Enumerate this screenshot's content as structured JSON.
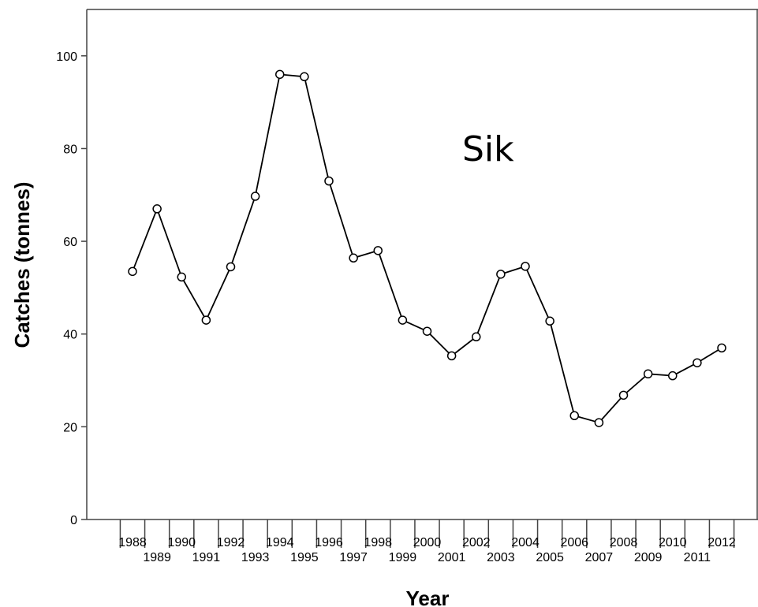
{
  "chart_data": {
    "type": "line",
    "title": "",
    "annotation": "Sik",
    "xlabel": "Year",
    "ylabel": "Catches (tonnes)",
    "ylim": [
      0,
      110
    ],
    "yticks": [
      0,
      20,
      40,
      60,
      80,
      100
    ],
    "grid": false,
    "legend": "none",
    "x": [
      "1988",
      "1989",
      "1990",
      "1991",
      "1992",
      "1993",
      "1994",
      "1995",
      "1996",
      "1997",
      "1998",
      "1999",
      "2000",
      "2001",
      "2002",
      "2003",
      "2004",
      "2005",
      "2006",
      "2007",
      "2008",
      "2009",
      "2010",
      "2011",
      "2012"
    ],
    "series": [
      {
        "values": [
          53.5,
          67.0,
          52.3,
          43.0,
          54.5,
          69.7,
          96.0,
          95.5,
          73.0,
          56.4,
          58.0,
          43.0,
          40.6,
          35.3,
          39.4,
          52.9,
          54.6,
          42.8,
          22.4,
          20.9,
          26.8,
          31.4,
          31.0,
          33.8,
          37.0
        ]
      }
    ],
    "colors": {
      "line": "#000000",
      "marker_fill": "#ffffff",
      "axis": "#444444"
    }
  }
}
